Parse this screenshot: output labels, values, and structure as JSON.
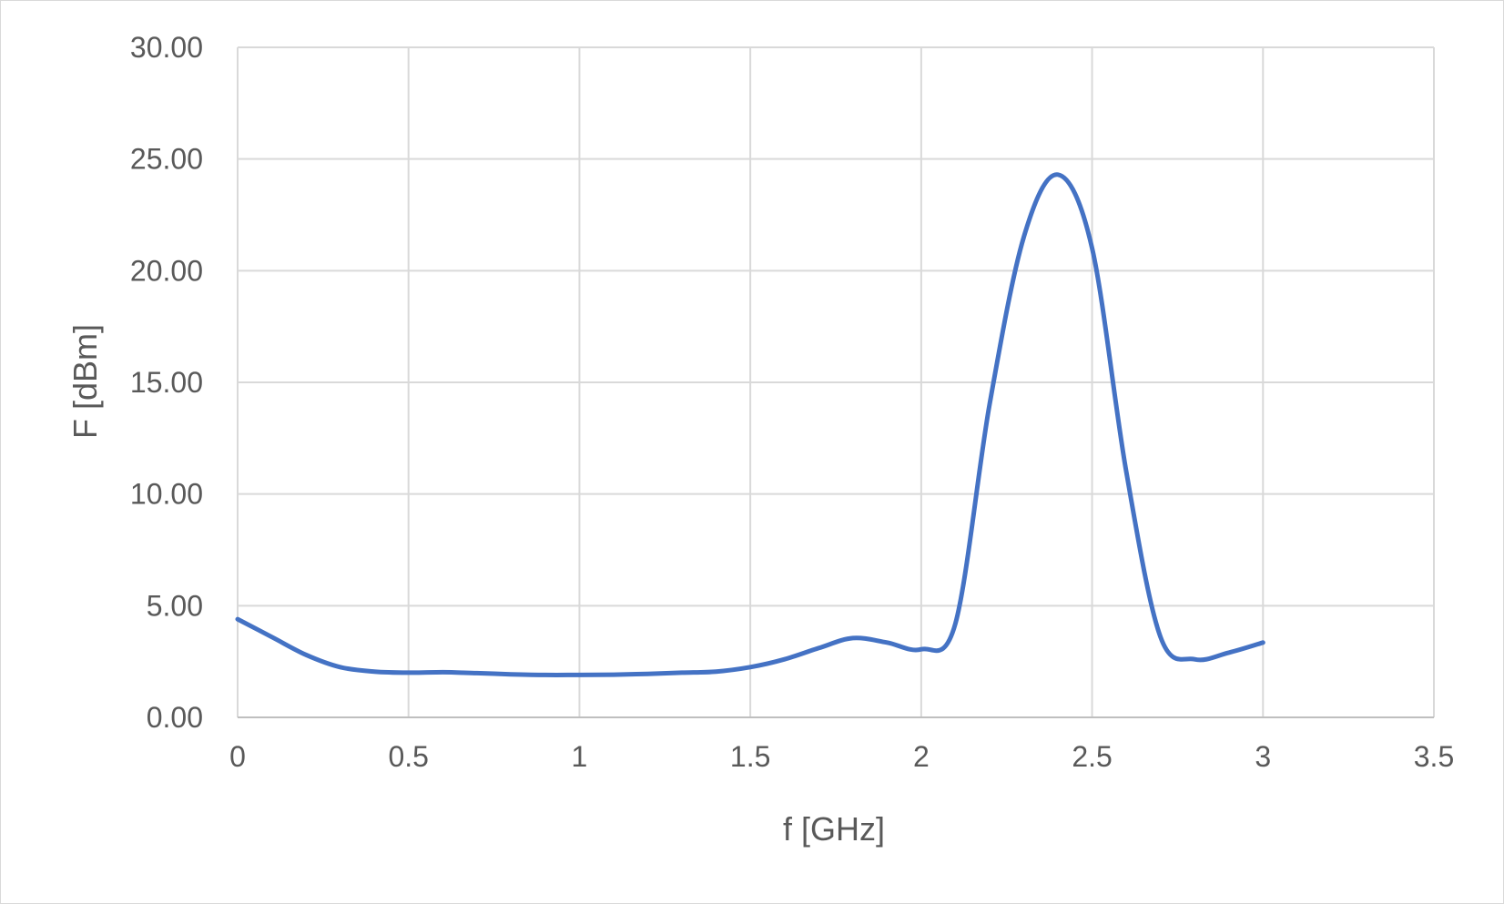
{
  "chart_data": {
    "type": "line",
    "title": "",
    "xlabel": "f [GHz]",
    "ylabel": "F [dBm]",
    "xlim": [
      0,
      3.5
    ],
    "ylim": [
      0,
      30
    ],
    "x_ticks": [
      "0",
      "0.5",
      "1",
      "1.5",
      "2",
      "2.5",
      "3",
      "3.5"
    ],
    "y_ticks": [
      "0.00",
      "5.00",
      "10.00",
      "15.00",
      "20.00",
      "25.00",
      "30.00"
    ],
    "grid": true,
    "legend": "none",
    "smooth": true,
    "series": [
      {
        "color": "#4472c4",
        "x": [
          0,
          0.1,
          0.2,
          0.3,
          0.4,
          0.5,
          0.6,
          0.7,
          0.8,
          0.9,
          1.0,
          1.1,
          1.2,
          1.3,
          1.4,
          1.5,
          1.6,
          1.7,
          1.8,
          1.9,
          2.0,
          2.1,
          2.2,
          2.3,
          2.4,
          2.5,
          2.6,
          2.7,
          2.8,
          2.9,
          3.0
        ],
        "y": [
          4.4,
          3.6,
          2.8,
          2.25,
          2.05,
          2.0,
          2.02,
          1.98,
          1.93,
          1.9,
          1.9,
          1.91,
          1.95,
          2.0,
          2.05,
          2.25,
          2.6,
          3.1,
          3.55,
          3.35,
          3.05,
          4.2,
          14.0,
          21.5,
          24.3,
          21.0,
          11.0,
          3.6,
          2.6,
          2.9,
          3.35
        ]
      }
    ]
  }
}
